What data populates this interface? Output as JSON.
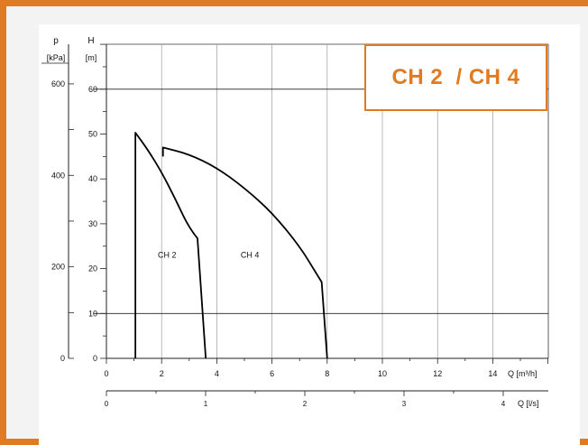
{
  "title": "CH 2  / CH 4",
  "colors": {
    "border": "#e07b22",
    "background": "#f3f3f3",
    "curve": "#000000",
    "title": "#e07b22"
  },
  "chart_data": {
    "type": "line",
    "title": "CH 2  / CH 4",
    "left_axes": {
      "p": {
        "label": "p",
        "unit": "[kPa]",
        "ticks": [
          0,
          200,
          400,
          600
        ],
        "tick_labels": [
          "0",
          "200",
          "400",
          "600"
        ]
      },
      "H": {
        "label": "H",
        "unit": "[m]",
        "ticks": [
          0,
          10,
          20,
          30,
          40,
          50,
          60
        ],
        "tick_labels": [
          "0",
          "10",
          "20",
          "30",
          "40",
          "50",
          "60"
        ],
        "ylim": [
          0,
          70
        ]
      }
    },
    "bottom_axes": {
      "Q_m3h": {
        "label": "Q",
        "unit": "[m³/h]",
        "ticks": [
          0,
          2,
          4,
          6,
          8,
          10,
          12,
          14
        ],
        "tick_labels": [
          "0",
          "2",
          "4",
          "6",
          "8",
          "10",
          "12",
          "14"
        ],
        "xlim": [
          0,
          16
        ]
      },
      "Q_ls": {
        "label": "Q",
        "unit": "[l/s]",
        "ticks": [
          0,
          1,
          2,
          3,
          4
        ],
        "tick_labels": [
          "0",
          "1",
          "2",
          "3",
          "4"
        ]
      }
    },
    "grid": true,
    "series": [
      {
        "name": "CH 2",
        "label_pos": {
          "x": 2.2,
          "y": 23
        },
        "x": [
          1.05,
          1.05,
          1.5,
          2.0,
          2.5,
          3.0,
          3.6,
          3.6
        ],
        "y": [
          0,
          50.3,
          46.5,
          41.5,
          35.5,
          29.0,
          24.5,
          0
        ]
      },
      {
        "name": "CH 4",
        "label_pos": {
          "x": 5.2,
          "y": 23
        },
        "x": [
          2.05,
          2.05,
          3.0,
          4.0,
          5.0,
          6.0,
          7.0,
          7.6,
          8.0,
          8.0
        ],
        "y": [
          45,
          47.0,
          45.5,
          42.5,
          38.0,
          32.5,
          25.0,
          19.0,
          15.0,
          0
        ]
      }
    ]
  }
}
